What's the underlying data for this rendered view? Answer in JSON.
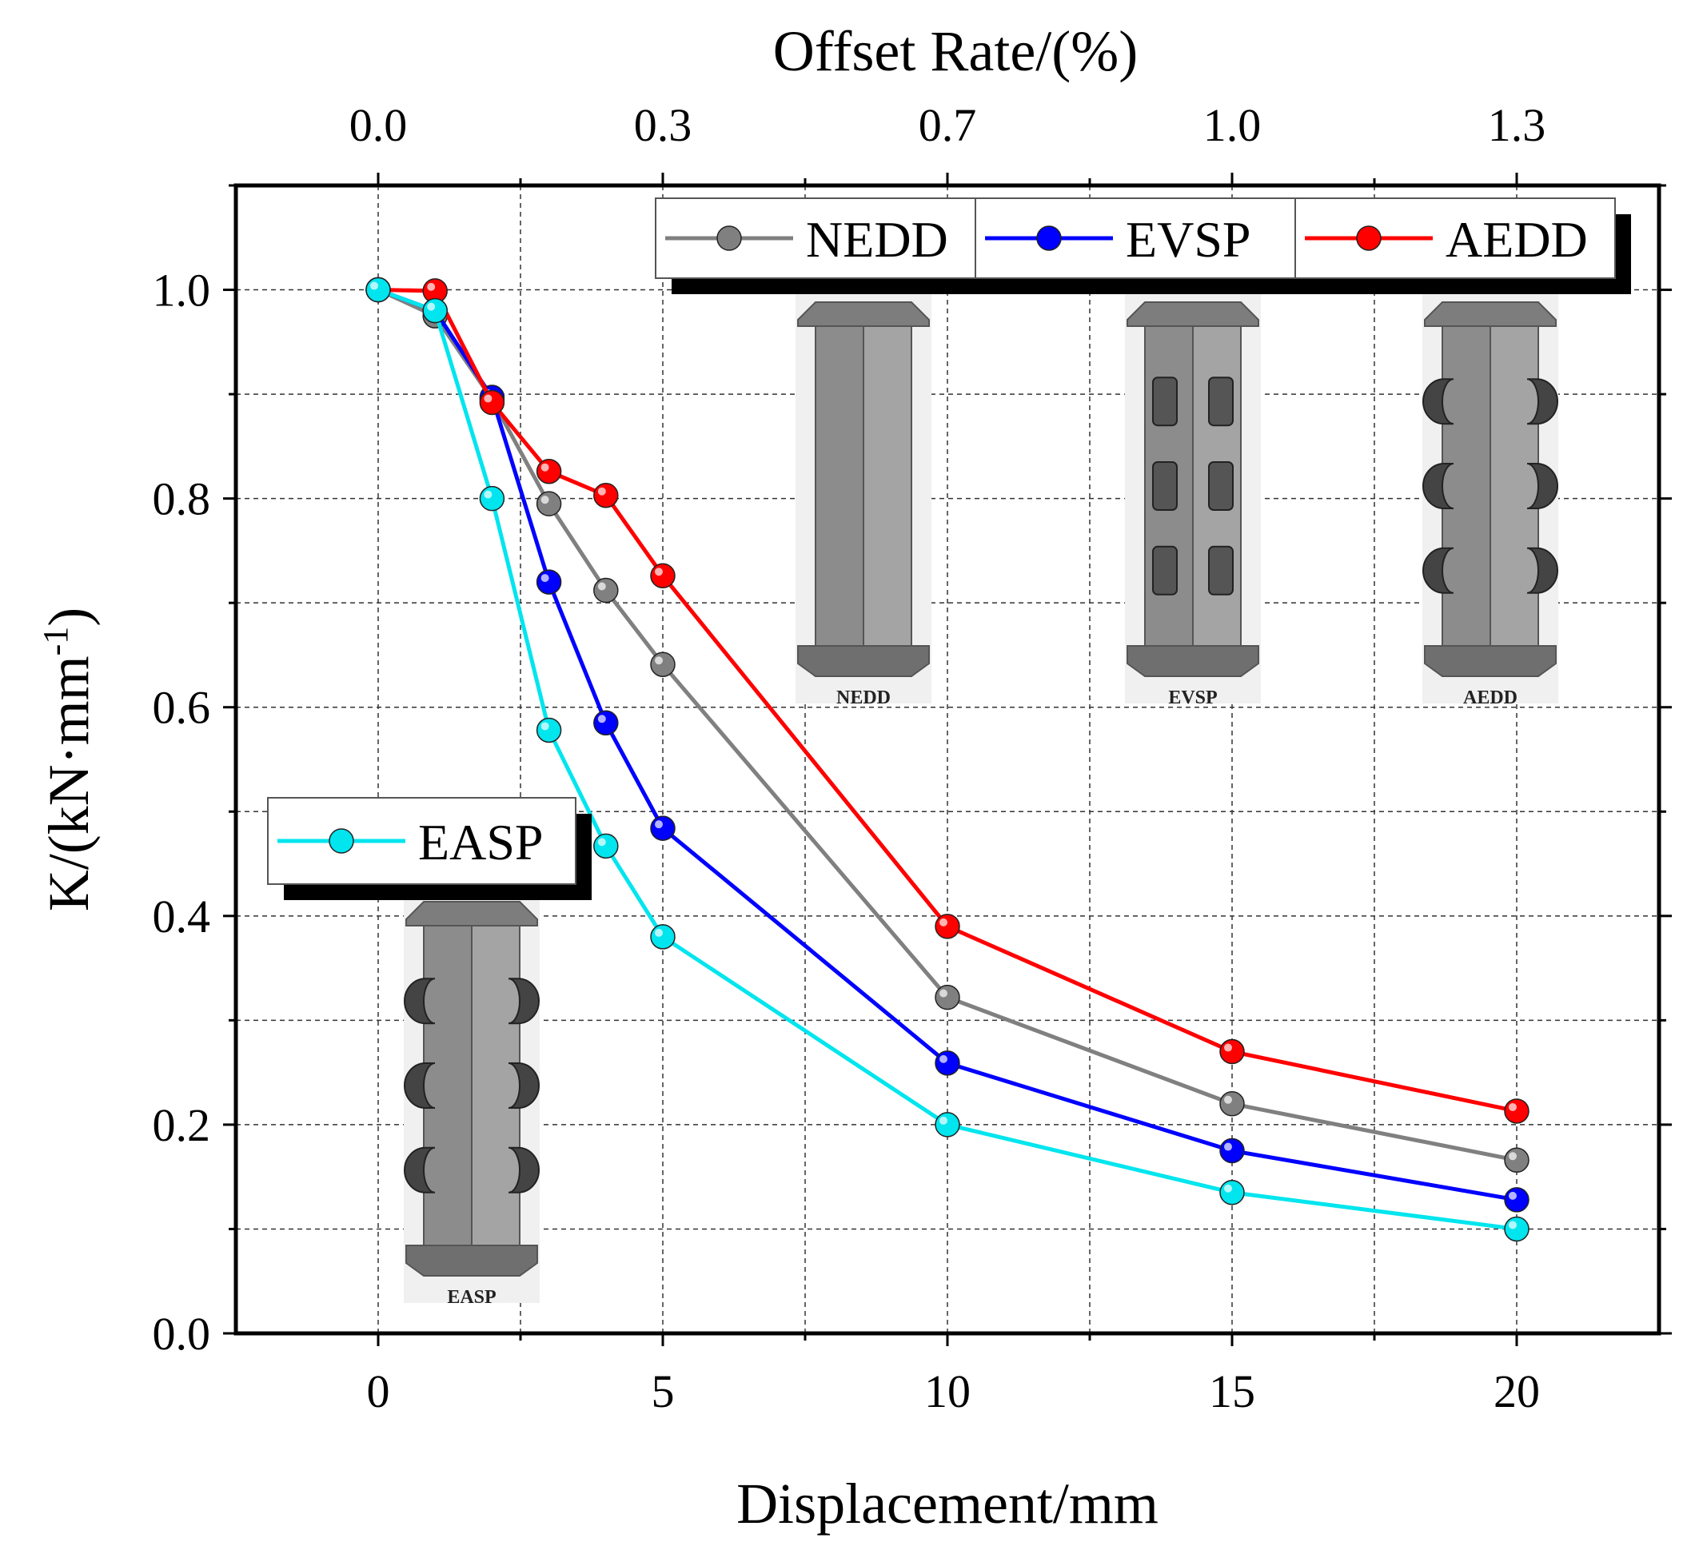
{
  "chart_data": {
    "type": "line",
    "x": [
      0,
      1,
      2,
      3,
      4,
      5,
      10,
      15,
      20
    ],
    "xlabel": "Displacement/mm",
    "xlim": [
      -2.5,
      22.5
    ],
    "x_ticks": [
      0,
      5,
      10,
      15,
      20
    ],
    "x_tick_labels": [
      "0",
      "5",
      "10",
      "15",
      "20"
    ],
    "ylabel": "K/(kN·mm",
    "ylabel_sup": "-1",
    "ylabel_close": ")",
    "ylim": [
      0.0,
      1.1
    ],
    "y_ticks": [
      0.0,
      0.2,
      0.4,
      0.6,
      0.8,
      1.0
    ],
    "y_tick_labels": [
      "0.0",
      "0.2",
      "0.4",
      "0.6",
      "0.8",
      "1.0"
    ],
    "x2label": "Offset Rate/(%)",
    "x2_tick_positions": [
      0,
      5,
      10,
      15,
      20
    ],
    "x2_tick_labels": [
      "0.0",
      "0.3",
      "0.7",
      "1.0",
      "1.3"
    ],
    "grid": true,
    "series": [
      {
        "name": "NEDD",
        "color": "#808080",
        "values": [
          1.0,
          0.975,
          0.895,
          0.795,
          0.712,
          0.641,
          0.322,
          0.22,
          0.166
        ]
      },
      {
        "name": "EVSP",
        "color": "#0000ff",
        "values": [
          1.0,
          0.98,
          0.897,
          0.72,
          0.585,
          0.484,
          0.259,
          0.175,
          0.128
        ]
      },
      {
        "name": "AEDD",
        "color": "#ff0000",
        "values": [
          1.0,
          0.999,
          0.892,
          0.826,
          0.803,
          0.726,
          0.39,
          0.27,
          0.213
        ]
      },
      {
        "name": "EASP",
        "color": "#00e5ee",
        "values": [
          1.0,
          0.98,
          0.8,
          0.578,
          0.467,
          0.38,
          0.2,
          0.135,
          0.1
        ]
      }
    ],
    "legend_upper": [
      "NEDD",
      "EVSP",
      "AEDD"
    ],
    "legend_lower": [
      "EASP"
    ],
    "inset_images": [
      "NEDD",
      "EVSP",
      "AEDD",
      "EASP"
    ]
  }
}
